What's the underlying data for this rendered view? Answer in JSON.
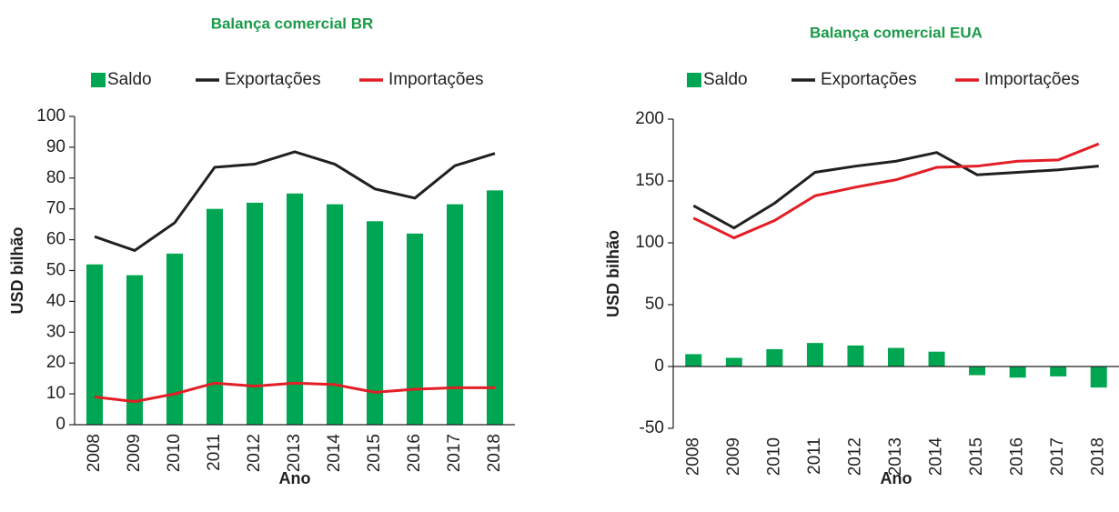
{
  "chart_data": [
    {
      "type": "bar_line",
      "title": "Balança comercial BR",
      "x_label": "Ano",
      "y_label": "USD bilhão",
      "categories": [
        "2008",
        "2009",
        "2010",
        "2011",
        "2012",
        "2013",
        "2014",
        "2015",
        "2016",
        "2017",
        "2018"
      ],
      "series": [
        {
          "name": "Saldo",
          "kind": "bar",
          "color": "#00a651",
          "values": [
            52,
            48.5,
            55.5,
            70,
            72,
            75,
            71.5,
            66,
            62,
            71.5,
            76
          ]
        },
        {
          "name": "Exportações",
          "kind": "line",
          "color": "#231f20",
          "values": [
            61,
            56.5,
            65.5,
            83.5,
            84.5,
            88.5,
            84.5,
            76.5,
            73.5,
            84,
            88
          ]
        },
        {
          "name": "Importações",
          "kind": "line",
          "color": "#e21e26",
          "values": [
            9,
            7.5,
            10,
            13.5,
            12.5,
            13.5,
            13,
            10.5,
            11.5,
            12,
            12
          ]
        }
      ],
      "ylim": [
        0,
        100
      ],
      "yticks": [
        0,
        10,
        20,
        30,
        40,
        50,
        60,
        70,
        80,
        90,
        100
      ]
    },
    {
      "type": "bar_line",
      "title": "Balança comercial EUA",
      "x_label": "Ano",
      "y_label": "USD bilhão",
      "categories": [
        "2008",
        "2009",
        "2010",
        "2011",
        "2012",
        "2013",
        "2014",
        "2015",
        "2016",
        "2017",
        "2018"
      ],
      "series": [
        {
          "name": "Saldo",
          "kind": "bar",
          "color": "#00a651",
          "values": [
            10,
            7,
            14,
            19,
            17,
            15,
            12,
            -7,
            -9,
            -8,
            -17
          ]
        },
        {
          "name": "Exportações",
          "kind": "line",
          "color": "#231f20",
          "values": [
            130,
            112,
            132,
            157,
            162,
            166,
            173,
            155,
            157,
            159,
            162
          ]
        },
        {
          "name": "Importações",
          "kind": "line",
          "color": "#e21e26",
          "values": [
            120,
            104,
            118,
            138,
            145,
            151,
            161,
            162,
            166,
            167,
            180
          ]
        }
      ],
      "ylim": [
        -50,
        200
      ],
      "yticks": [
        -50,
        0,
        50,
        100,
        150,
        200
      ]
    }
  ]
}
